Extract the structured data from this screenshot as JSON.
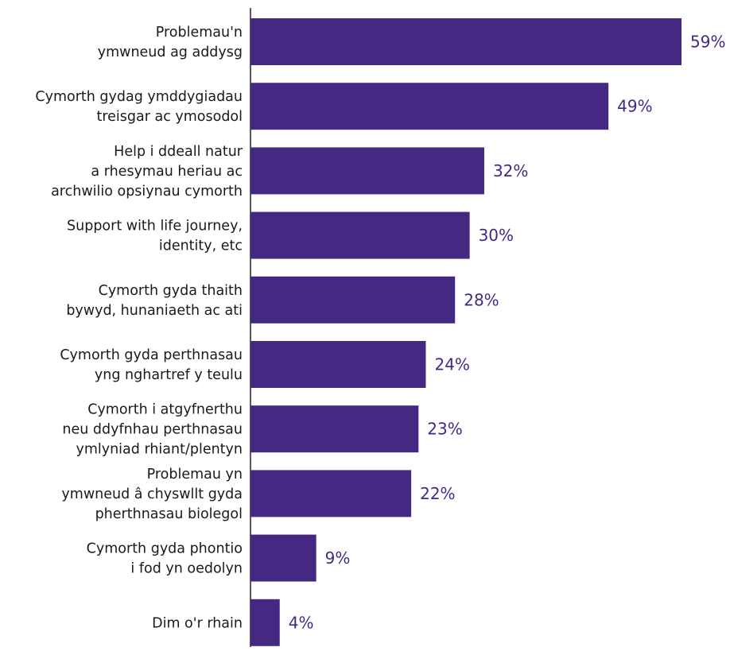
{
  "chart_data": {
    "type": "bar",
    "orientation": "horizontal",
    "categories": [
      [
        "Problemau'n",
        "ymwneud ag addysg"
      ],
      [
        "Cymorth gydag ymddygiadau",
        "treisgar ac ymosodol"
      ],
      [
        "Help i ddeall natur",
        "a rhesymau heriau ac",
        "archwilio opsiynau cymorth"
      ],
      [
        "Support with life journey,",
        "identity, etc"
      ],
      [
        "Cymorth gyda thaith",
        "bywyd, hunaniaeth ac ati"
      ],
      [
        "Cymorth gyda perthnasau",
        "yng nghartref y teulu"
      ],
      [
        "Cymorth i atgyfnerthu",
        "neu ddyfnhau perthnasau",
        "ymlyniad rhiant/plentyn"
      ],
      [
        "Problemau yn",
        "ymwneud â chyswllt gyda",
        "pherthnasau biolegol"
      ],
      [
        "Cymorth gyda phontio",
        "i fod yn oedolyn"
      ],
      [
        "Dim o'r rhain"
      ]
    ],
    "values": [
      59,
      49,
      32,
      30,
      28,
      24,
      23,
      22,
      9,
      4
    ],
    "value_labels": [
      "59%",
      "49%",
      "32%",
      "30%",
      "28%",
      "24%",
      "23%",
      "22%",
      "9%",
      "4%"
    ],
    "title": "",
    "xlabel": "",
    "ylabel": "",
    "xlim": [
      0,
      59
    ],
    "grid": false,
    "legend": "none",
    "colors": {
      "bar": "#452882",
      "value_label": "#452882",
      "axis": "#222222"
    }
  }
}
